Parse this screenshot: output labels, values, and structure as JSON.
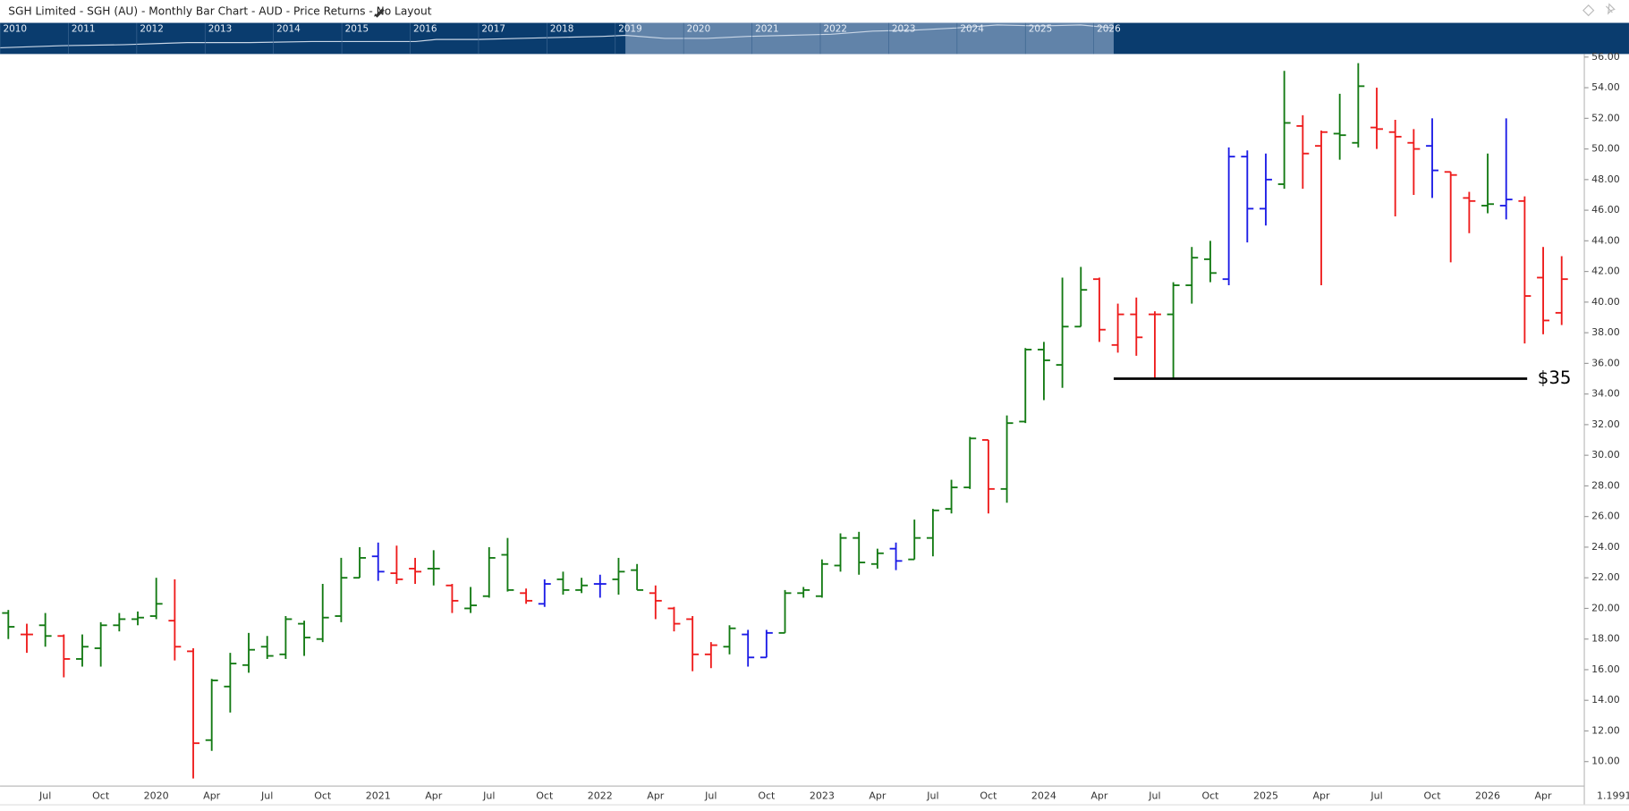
{
  "chart_data": {
    "type": "ohlc",
    "title": "SGH Limited - SGH (AU) - Monthly Bar Chart - AUD - Price Returns - No Layout",
    "navigator_years": [
      "2010",
      "2011",
      "2012",
      "2013",
      "2014",
      "2015",
      "2016",
      "2017",
      "2018",
      "2019",
      "2020",
      "2021",
      "2022",
      "2023",
      "2024",
      "2025",
      "2026"
    ],
    "corner_label": "1.1991",
    "categories": [
      null,
      null,
      "Jul",
      null,
      null,
      "Oct",
      null,
      null,
      "2020",
      null,
      null,
      "Apr",
      null,
      null,
      "Jul",
      null,
      null,
      "Oct",
      null,
      null,
      "2021",
      null,
      null,
      "Apr",
      null,
      null,
      "Jul",
      null,
      null,
      "Oct",
      null,
      null,
      "2022",
      null,
      null,
      "Apr",
      null,
      null,
      "Jul",
      null,
      null,
      "Oct",
      null,
      null,
      "2023",
      null,
      null,
      "Apr",
      null,
      null,
      "Jul",
      null,
      null,
      "Oct",
      null,
      null,
      "2024",
      null,
      null,
      "Apr",
      null,
      null,
      "Jul",
      null,
      null,
      "Oct",
      null,
      null,
      "2025",
      null,
      null,
      "Apr",
      null,
      null,
      "Jul",
      null,
      null,
      "Oct",
      null,
      null,
      "2026",
      null,
      null,
      "Apr",
      null
    ],
    "open": [
      19.7,
      18.3,
      18.9,
      18.2,
      16.7,
      17.4,
      18.9,
      19.3,
      19.5,
      19.2,
      17.2,
      11.4,
      14.9,
      16.3,
      17.5,
      17.0,
      19.0,
      18.0,
      19.5,
      22.0,
      23.4,
      22.3,
      22.6,
      22.6,
      21.5,
      20.0,
      20.8,
      23.5,
      21.0,
      20.3,
      21.9,
      21.2,
      21.6,
      21.9,
      22.5,
      21.0,
      20.0,
      19.3,
      17.0,
      17.5,
      18.3,
      16.8,
      18.4,
      21.0,
      20.8,
      22.8,
      24.6,
      22.9,
      23.9,
      23.2,
      24.6,
      26.5,
      27.9,
      31.0,
      27.8,
      32.2,
      36.9,
      35.9,
      38.4,
      41.5,
      37.2,
      39.2,
      39.2,
      39.2,
      41.1,
      42.8,
      41.5,
      49.5,
      46.1,
      47.7,
      51.5,
      50.2,
      51.0,
      50.4,
      51.4,
      51.1,
      50.4,
      50.2,
      48.5,
      46.8,
      46.3,
      46.3,
      46.6,
      41.6,
      39.3
    ],
    "high": [
      19.9,
      19.0,
      19.7,
      18.3,
      18.3,
      19.1,
      19.7,
      19.8,
      22.0,
      21.9,
      17.4,
      15.4,
      17.1,
      18.4,
      18.2,
      19.5,
      19.2,
      21.6,
      23.3,
      24.0,
      24.3,
      24.1,
      23.3,
      23.8,
      21.6,
      21.4,
      24.0,
      24.6,
      21.3,
      21.9,
      22.4,
      22.0,
      22.2,
      23.3,
      22.9,
      21.5,
      20.1,
      19.5,
      17.8,
      18.9,
      18.6,
      18.6,
      21.2,
      21.4,
      23.2,
      24.9,
      25.0,
      23.9,
      24.3,
      25.8,
      26.5,
      28.4,
      31.2,
      31.0,
      32.6,
      37.0,
      37.4,
      41.6,
      42.3,
      41.6,
      39.9,
      40.3,
      39.4,
      41.3,
      43.6,
      44.0,
      50.1,
      49.9,
      49.7,
      55.1,
      52.2,
      51.2,
      53.6,
      55.6,
      54.0,
      51.9,
      51.3,
      52.0,
      48.5,
      47.2,
      49.7,
      52.0,
      46.9,
      43.6,
      43.0
    ],
    "low": [
      18.0,
      17.1,
      17.5,
      15.5,
      16.2,
      16.2,
      18.5,
      18.9,
      19.3,
      16.6,
      8.9,
      10.7,
      13.2,
      15.8,
      16.7,
      16.7,
      16.9,
      17.8,
      19.1,
      22.0,
      21.8,
      21.6,
      21.6,
      21.5,
      19.7,
      19.7,
      20.7,
      21.1,
      20.3,
      20.1,
      20.9,
      21.0,
      20.7,
      20.9,
      21.2,
      19.3,
      18.5,
      15.9,
      16.1,
      17.0,
      16.2,
      16.8,
      18.4,
      20.7,
      20.7,
      22.4,
      22.2,
      22.6,
      22.5,
      23.2,
      23.4,
      26.2,
      27.8,
      26.2,
      26.9,
      32.1,
      33.6,
      34.4,
      38.4,
      37.4,
      36.7,
      36.5,
      35.0,
      35.0,
      39.9,
      41.3,
      41.1,
      43.9,
      45.0,
      47.4,
      47.4,
      41.1,
      49.3,
      50.1,
      50.0,
      45.6,
      47.0,
      46.8,
      42.6,
      44.5,
      45.8,
      45.4,
      37.3,
      37.9,
      38.5
    ],
    "close": [
      18.8,
      18.3,
      18.2,
      16.7,
      17.5,
      18.9,
      19.3,
      19.4,
      20.3,
      17.5,
      11.2,
      15.3,
      16.4,
      17.3,
      16.9,
      19.3,
      18.1,
      19.4,
      22.0,
      23.3,
      22.4,
      21.9,
      22.4,
      22.6,
      20.5,
      20.2,
      23.3,
      21.2,
      20.5,
      21.6,
      21.2,
      21.5,
      21.6,
      22.4,
      21.2,
      20.5,
      19.0,
      17.0,
      17.6,
      18.7,
      16.8,
      18.4,
      21.0,
      21.2,
      22.9,
      24.6,
      23.0,
      23.6,
      23.1,
      24.6,
      26.4,
      27.9,
      31.1,
      27.8,
      32.1,
      36.9,
      36.2,
      38.4,
      40.8,
      38.2,
      39.2,
      37.7,
      39.2,
      41.1,
      42.9,
      41.9,
      49.5,
      46.1,
      48.0,
      51.7,
      49.7,
      51.1,
      50.9,
      54.1,
      51.3,
      50.8,
      50.0,
      48.6,
      48.3,
      46.6,
      46.4,
      46.7,
      40.4,
      38.8,
      41.5
    ],
    "bar_colors": [
      "#137a13",
      "#ee1c1c",
      "#137a13",
      "#ee1c1c",
      "#137a13",
      "#137a13",
      "#137a13",
      "#137a13",
      "#137a13",
      "#ee1c1c",
      "#ee1c1c",
      "#137a13",
      "#137a13",
      "#137a13",
      "#137a13",
      "#137a13",
      "#137a13",
      "#137a13",
      "#137a13",
      "#137a13",
      "#1c1ce6",
      "#ee1c1c",
      "#ee1c1c",
      "#137a13",
      "#ee1c1c",
      "#137a13",
      "#137a13",
      "#137a13",
      "#ee1c1c",
      "#1c1ce6",
      "#137a13",
      "#137a13",
      "#1c1ce6",
      "#137a13",
      "#137a13",
      "#ee1c1c",
      "#ee1c1c",
      "#ee1c1c",
      "#ee1c1c",
      "#137a13",
      "#1c1ce6",
      "#1c1ce6",
      "#137a13",
      "#137a13",
      "#137a13",
      "#137a13",
      "#137a13",
      "#137a13",
      "#1c1ce6",
      "#137a13",
      "#137a13",
      "#137a13",
      "#137a13",
      "#ee1c1c",
      "#137a13",
      "#137a13",
      "#137a13",
      "#137a13",
      "#137a13",
      "#ee1c1c",
      "#ee1c1c",
      "#ee1c1c",
      "#ee1c1c",
      "#137a13",
      "#137a13",
      "#137a13",
      "#1c1ce6",
      "#1c1ce6",
      "#1c1ce6",
      "#137a13",
      "#ee1c1c",
      "#ee1c1c",
      "#137a13",
      "#137a13",
      "#ee1c1c",
      "#ee1c1c",
      "#ee1c1c",
      "#1c1ce6",
      "#ee1c1c",
      "#ee1c1c",
      "#137a13",
      "#1c1ce6",
      "#ee1c1c",
      "#ee1c1c",
      "#ee1c1c"
    ],
    "ylim": [
      8.4,
      56.2
    ],
    "yticks": [
      {
        "value": 10,
        "label": "10.00"
      },
      {
        "value": 12,
        "label": "12.00"
      },
      {
        "value": 14,
        "label": "14.00"
      },
      {
        "value": 16,
        "label": "16.00"
      },
      {
        "value": 18,
        "label": "18.00"
      },
      {
        "value": 20,
        "label": "20.00"
      },
      {
        "value": 22,
        "label": "22.00"
      },
      {
        "value": 24,
        "label": "24.00"
      },
      {
        "value": 26,
        "label": "26.00"
      },
      {
        "value": 28,
        "label": "28.00"
      },
      {
        "value": 30,
        "label": "30.00"
      },
      {
        "value": 32,
        "label": "32.00"
      },
      {
        "value": 34,
        "label": "34.00"
      },
      {
        "value": 36,
        "label": "36.00"
      },
      {
        "value": 38,
        "label": "38.00"
      },
      {
        "value": 40,
        "label": "40.00"
      },
      {
        "value": 42,
        "label": "42.00"
      },
      {
        "value": 44,
        "label": "44.00"
      },
      {
        "value": 46,
        "label": "46.00"
      },
      {
        "value": 48,
        "label": "48.00"
      },
      {
        "value": 50,
        "label": "50.00"
      },
      {
        "value": 52,
        "label": "52.00"
      },
      {
        "value": 54,
        "label": "54.00"
      },
      {
        "value": 56,
        "label": "56.00"
      }
    ],
    "grid": false,
    "annotations": [
      {
        "value": 35,
        "label": "$35"
      }
    ]
  }
}
